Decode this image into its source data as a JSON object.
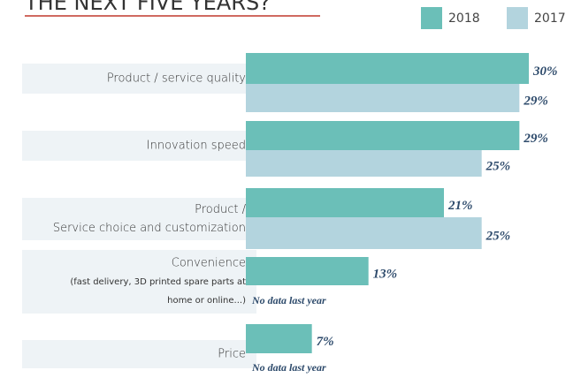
{
  "chart_data": {
    "type": "hbar",
    "title": "THE NEXT FIVE YEARS?",
    "categories": [
      [
        "Product / service quality"
      ],
      [
        "Innovation speed"
      ],
      [
        "Product /",
        "Service choice and customization"
      ],
      [
        "Convenience"
      ],
      [
        "Price"
      ]
    ],
    "category_notes": [
      [],
      [],
      [],
      [
        "(fast delivery, 3D printed spare parts at",
        "home or online...)"
      ],
      []
    ],
    "series": [
      {
        "name": "2018",
        "color": "#6bbfb8",
        "values": [
          30,
          29,
          21,
          13,
          7
        ],
        "value_labels": [
          "30%",
          "29%",
          "21%",
          "13%",
          "7%"
        ]
      },
      {
        "name": "2017",
        "color": "#b3d4de",
        "values": [
          29,
          25,
          25,
          null,
          null
        ],
        "value_labels": [
          "29%",
          "25%",
          "25%",
          null,
          null
        ]
      }
    ],
    "missing_label": "No data last year",
    "xlim": [
      0,
      30
    ]
  }
}
